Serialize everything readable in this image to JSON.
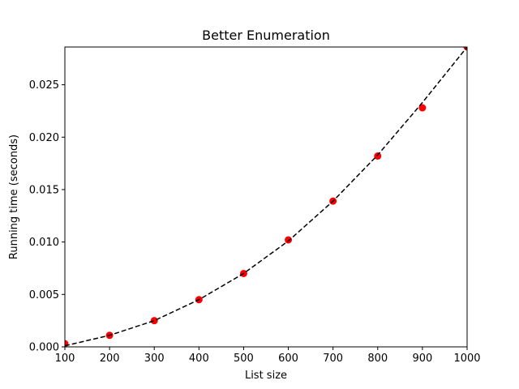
{
  "chart_data": {
    "type": "scatter",
    "title": "Better Enumeration",
    "xlabel": "List size",
    "ylabel": "Running time (seconds)",
    "xlim": [
      100,
      1000
    ],
    "ylim": [
      0,
      0.0286
    ],
    "grid": false,
    "legend": "none",
    "x_ticks": [
      "100",
      "200",
      "300",
      "400",
      "500",
      "600",
      "700",
      "800",
      "900",
      "1000"
    ],
    "y_ticks": [
      "0.000",
      "0.005",
      "0.010",
      "0.015",
      "0.020",
      "0.025"
    ],
    "x_tick_values": [
      100,
      200,
      300,
      400,
      500,
      600,
      700,
      800,
      900,
      1000
    ],
    "y_tick_values": [
      0,
      0.005,
      0.01,
      0.015,
      0.02,
      0.025
    ],
    "series": [
      {
        "kind": "points",
        "color": "#ff0000",
        "x": [
          100,
          200,
          300,
          400,
          500,
          600,
          700,
          800,
          900,
          1000
        ],
        "y": [
          0.0003,
          0.0011,
          0.0025,
          0.0045,
          0.007,
          0.0102,
          0.0139,
          0.0182,
          0.0228,
          0.0286
        ]
      },
      {
        "kind": "dashed-line",
        "color": "#000000",
        "x": [
          100,
          200,
          300,
          400,
          500,
          600,
          700,
          800,
          900,
          1000
        ],
        "y": [
          0.0001,
          0.0011,
          0.0025,
          0.0045,
          0.007,
          0.0101,
          0.0139,
          0.0183,
          0.0233,
          0.0286
        ]
      }
    ]
  }
}
